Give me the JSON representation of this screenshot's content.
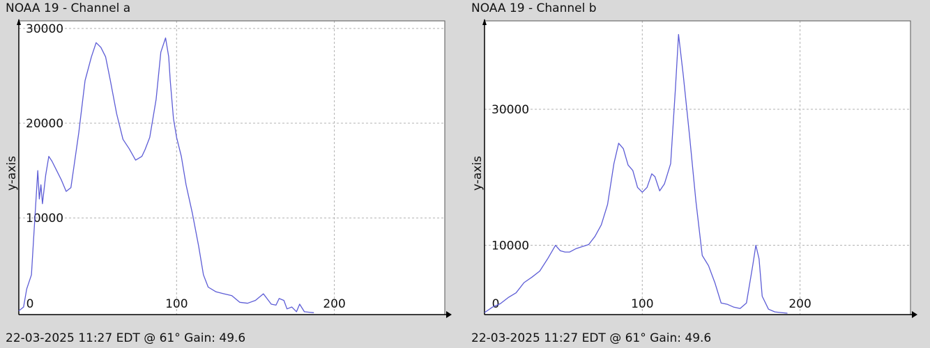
{
  "charts": [
    {
      "title": "NOAA 19 - Channel a",
      "footer": "22-03-2025 11:27 EDT @ 61° Gain: 49.6"
    },
    {
      "title": "NOAA 19 - Channel b",
      "footer": "22-03-2025 11:27 EDT @ 61° Gain: 49.6"
    }
  ],
  "chart_data": [
    {
      "type": "line",
      "title": "NOAA 19 - Channel a",
      "xlabel": "",
      "ylabel": "y-axis",
      "xlim": [
        0,
        270
      ],
      "ylim": [
        -200,
        30800
      ],
      "x_ticks": [
        0,
        100,
        200
      ],
      "y_ticks": [
        10000,
        20000,
        30000
      ],
      "grid": true,
      "line_color": "#5c5cd6",
      "series": [
        {
          "x": [
            0,
            3,
            5,
            8,
            10,
            12,
            13,
            14,
            15,
            16,
            17,
            19,
            21,
            24,
            27,
            30,
            33,
            35,
            38,
            42,
            46,
            49,
            52,
            55,
            58,
            62,
            66,
            70,
            74,
            78,
            80,
            83,
            87,
            90,
            93,
            95,
            96,
            98,
            100,
            103,
            106,
            110,
            114,
            117,
            120,
            125,
            130,
            135,
            140,
            145,
            150,
            155,
            160,
            163,
            165,
            168,
            170,
            173,
            176,
            178,
            181,
            184,
            187
          ],
          "y": [
            200,
            600,
            2500,
            4000,
            9500,
            15000,
            12000,
            13500,
            11500,
            13000,
            14500,
            16500,
            16000,
            15000,
            14000,
            12800,
            13200,
            15500,
            19000,
            24500,
            27000,
            28500,
            28000,
            27000,
            24500,
            21000,
            18300,
            17300,
            16100,
            16500,
            17200,
            18500,
            22500,
            27500,
            29000,
            27000,
            24500,
            20500,
            18500,
            16500,
            13500,
            10500,
            7000,
            4000,
            2700,
            2200,
            2000,
            1800,
            1100,
            1000,
            1300,
            2000,
            900,
            800,
            1500,
            1300,
            400,
            600,
            100,
            900,
            100,
            50,
            0
          ]
        }
      ]
    },
    {
      "type": "line",
      "title": "NOAA 19 - Channel b",
      "xlabel": "",
      "ylabel": "y-axis",
      "xlim": [
        0,
        270
      ],
      "ylim": [
        -200,
        43000
      ],
      "x_ticks": [
        0,
        100,
        200
      ],
      "y_ticks": [
        10000,
        30000
      ],
      "grid": true,
      "line_color": "#5c5cd6",
      "series": [
        {
          "x": [
            0,
            5,
            10,
            15,
            20,
            25,
            30,
            35,
            40,
            45,
            48,
            51,
            54,
            58,
            62,
            66,
            70,
            74,
            78,
            82,
            85,
            88,
            91,
            94,
            97,
            100,
            103,
            106,
            108,
            111,
            114,
            118,
            121,
            123,
            126,
            130,
            134,
            138,
            142,
            146,
            150,
            154,
            158,
            162,
            166,
            170,
            172,
            174,
            176,
            180,
            184,
            188,
            192
          ],
          "y": [
            100,
            900,
            1400,
            2300,
            3000,
            4500,
            5300,
            6200,
            8000,
            10000,
            9200,
            9000,
            9000,
            9500,
            9800,
            10100,
            11300,
            13000,
            16000,
            22000,
            25000,
            24200,
            21800,
            21000,
            18500,
            17800,
            18500,
            20500,
            20100,
            18000,
            19000,
            22000,
            33000,
            41000,
            35000,
            26000,
            16500,
            8500,
            7000,
            4500,
            1500,
            1300,
            900,
            700,
            1500,
            7000,
            10000,
            8000,
            2500,
            600,
            200,
            100,
            0
          ]
        }
      ]
    }
  ]
}
